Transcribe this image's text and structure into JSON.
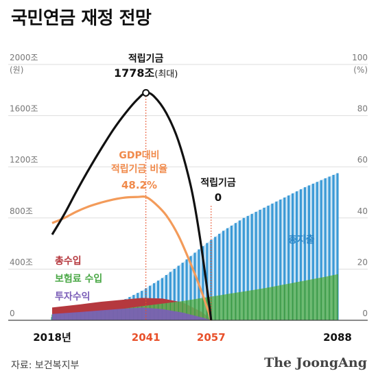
{
  "header": {
    "title": "국민연금 재정 전망"
  },
  "footer": {
    "source": "자료: 보건복지부",
    "brand": "The JoongAng"
  },
  "chart_data": {
    "type": "area",
    "x_range": [
      2018,
      2088
    ],
    "left_axis": {
      "unit": "(원)",
      "ticks": [
        "0",
        "400조",
        "800조",
        "1200조",
        "1600조",
        "2000조"
      ],
      "ylim": [
        0,
        2000
      ]
    },
    "right_axis": {
      "unit": "(%)",
      "ticks": [
        "0",
        "20",
        "40",
        "60",
        "80",
        "100"
      ],
      "ylim": [
        0,
        100
      ]
    },
    "x_tick_labels": [
      {
        "year": 2018,
        "label": "2018년",
        "color": "#111111"
      },
      {
        "year": 2041,
        "label": "2041",
        "color": "#e8502a"
      },
      {
        "year": 2057,
        "label": "2057",
        "color": "#e8502a"
      },
      {
        "year": 2088,
        "label": "2088",
        "color": "#111111"
      }
    ],
    "series": [
      {
        "name": "적립기금",
        "axis": "left",
        "color": "#111111",
        "type": "line",
        "x": [
          2018,
          2021,
          2024,
          2027,
          2030,
          2033,
          2036,
          2039,
          2041,
          2043,
          2046,
          2049,
          2052,
          2054,
          2056,
          2057
        ],
        "y": [
          670,
          830,
          1010,
          1180,
          1340,
          1490,
          1620,
          1730,
          1778,
          1750,
          1620,
          1400,
          1050,
          700,
          250,
          0
        ]
      },
      {
        "name": "GDP대비 적립기금 비율",
        "axis": "right",
        "color": "#f39b5a",
        "type": "line",
        "x": [
          2018,
          2021,
          2024,
          2027,
          2030,
          2033,
          2036,
          2039,
          2041,
          2043,
          2046,
          2049,
          2052,
          2054,
          2056,
          2057
        ],
        "y": [
          38,
          40,
          42.5,
          44.5,
          46,
          47.2,
          48,
          48.2,
          48.2,
          46,
          41,
          33,
          22,
          14,
          5,
          0
        ]
      },
      {
        "name": "총지출",
        "axis": "left",
        "color": "#3b9ad6",
        "type": "bar",
        "x": [
          2018,
          2025,
          2030,
          2035,
          2040,
          2045,
          2050,
          2055,
          2060,
          2065,
          2070,
          2075,
          2080,
          2085,
          2088
        ],
        "y": [
          25,
          60,
          100,
          150,
          230,
          330,
          450,
          580,
          700,
          800,
          880,
          960,
          1040,
          1110,
          1150
        ]
      },
      {
        "name": "총수입",
        "axis": "left",
        "color": "#b5383e",
        "type": "area",
        "x": [
          2018,
          2025,
          2030,
          2035,
          2040,
          2045,
          2050,
          2055,
          2057
        ],
        "y": [
          100,
          125,
          145,
          160,
          175,
          170,
          140,
          60,
          0
        ]
      },
      {
        "name": "보험료 수입",
        "axis": "left",
        "color": "#5fb35a",
        "type": "area",
        "x": [
          2018,
          2025,
          2030,
          2035,
          2040,
          2045,
          2050,
          2055,
          2060,
          2065,
          2070,
          2075,
          2080,
          2085,
          2088
        ],
        "y": [
          45,
          60,
          72,
          88,
          110,
          130,
          150,
          175,
          200,
          225,
          250,
          280,
          310,
          340,
          360
        ]
      },
      {
        "name": "투자수익",
        "axis": "left",
        "color": "#7b5eb8",
        "type": "area",
        "x": [
          2018,
          2025,
          2030,
          2035,
          2040,
          2045,
          2050,
          2055,
          2057
        ],
        "y": [
          50,
          65,
          78,
          90,
          100,
          88,
          60,
          20,
          0
        ]
      }
    ],
    "annotations": [
      {
        "id": "peak",
        "lines": [
          "적립기금",
          "1778조",
          "(최대)"
        ]
      },
      {
        "id": "ratio",
        "lines": [
          "GDP대비",
          "적립기금 비율",
          "48.2%"
        ]
      },
      {
        "id": "depletion",
        "lines": [
          "적립기금",
          "0"
        ]
      }
    ]
  }
}
